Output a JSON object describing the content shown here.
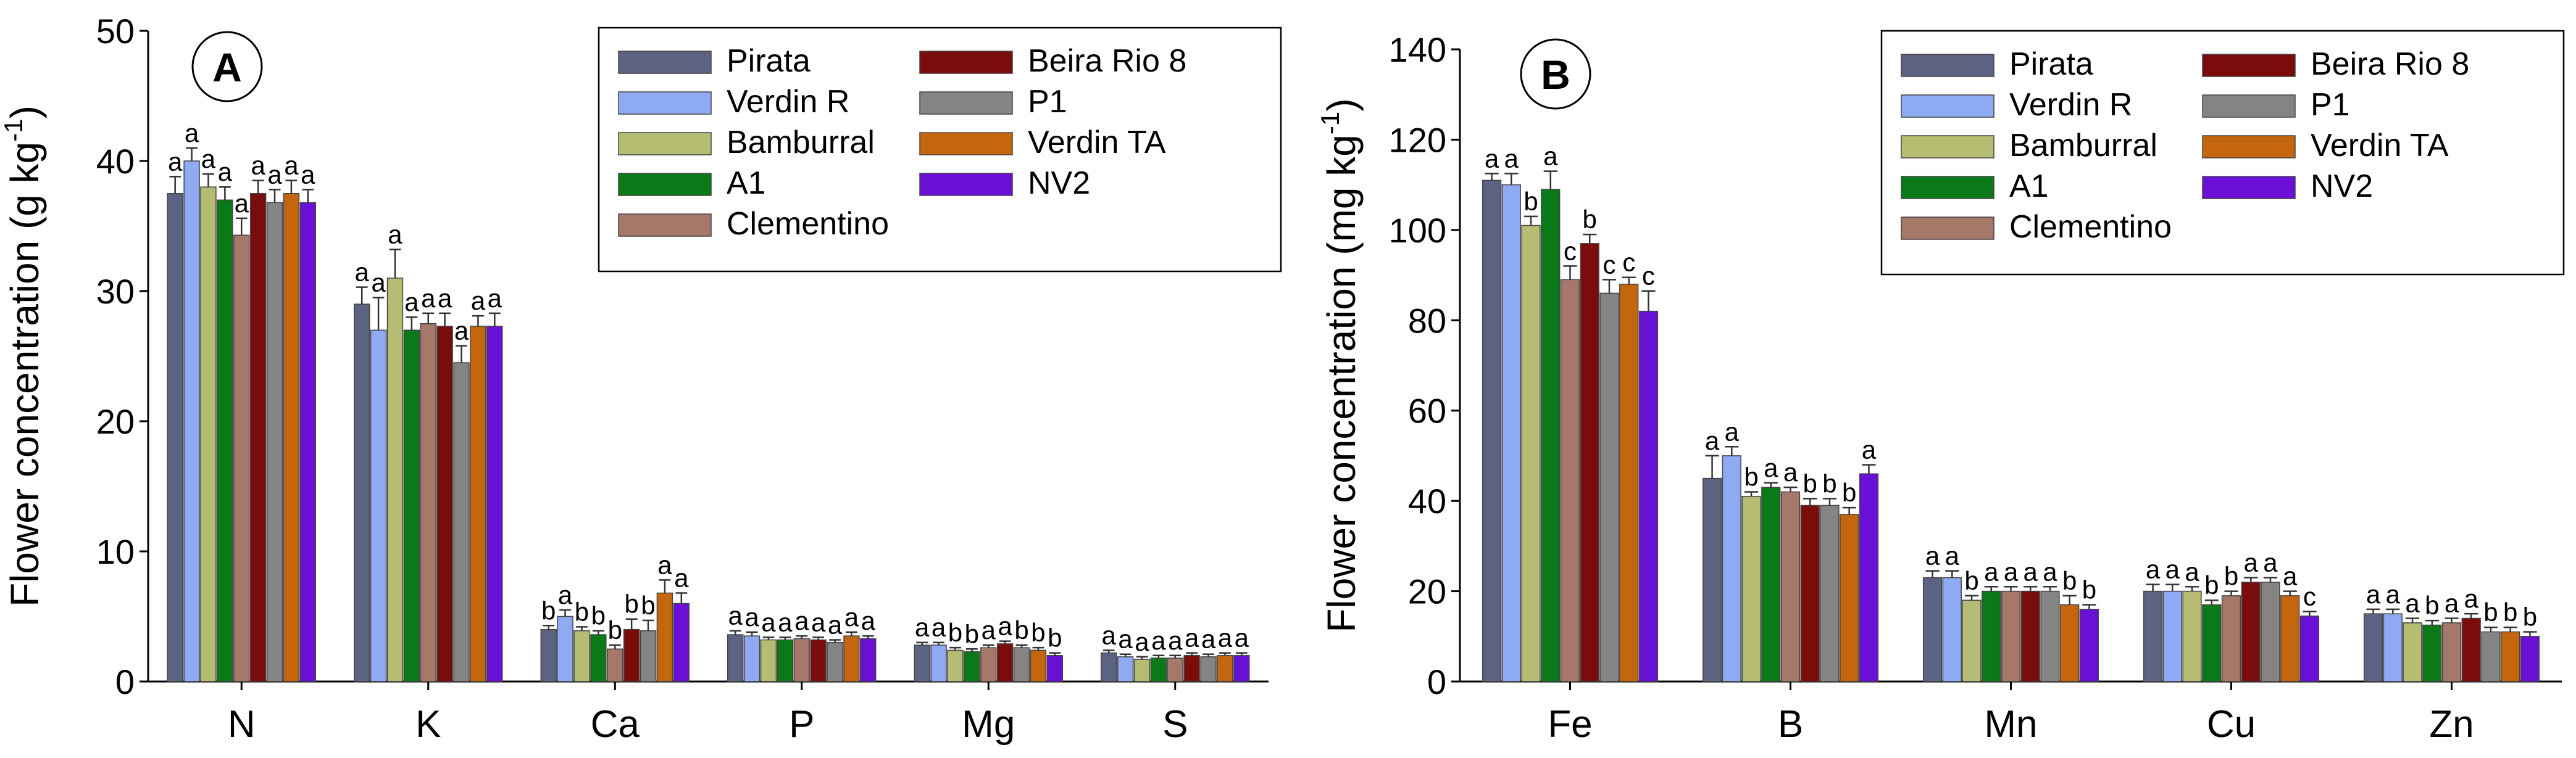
{
  "colors": {
    "Pirata": "#5b6282",
    "Verdin R": "#8eaaf3",
    "Bamburral": "#b6bc72",
    "A1": "#0a7a18",
    "Clementino": "#a5786a",
    "Beira Rio 8": "#7b0c0c",
    "P1": "#848484",
    "Verdin TA": "#c4660e",
    "NV2": "#6a0fd6"
  },
  "chart_data": [
    {
      "type": "bar",
      "panel": "A",
      "ylabel": "Flower concentration (g kg",
      "ylabel_sup": "-1",
      "ylabel_end": ")",
      "ylim": [
        0,
        50
      ],
      "yticks": [
        0,
        10,
        20,
        30,
        40,
        50
      ],
      "categories": [
        "N",
        "K",
        "Ca",
        "P",
        "Mg",
        "S"
      ],
      "legend_col1": [
        "Pirata",
        "Verdin R",
        "Bamburral",
        "A1",
        "Clementino"
      ],
      "legend_col2": [
        "Beira Rio 8",
        "P1",
        "Verdin TA",
        "NV2"
      ],
      "series": [
        {
          "name": "Pirata",
          "values": [
            37.5,
            29.0,
            4.0,
            3.6,
            2.8,
            2.2
          ],
          "errors": [
            1.3,
            1.3,
            0.3,
            0.3,
            0.2,
            0.2
          ],
          "sig": [
            "a",
            "a",
            "b",
            "a",
            "a",
            "a"
          ]
        },
        {
          "name": "Verdin R",
          "values": [
            40.0,
            27.0,
            5.0,
            3.5,
            2.8,
            1.9
          ],
          "errors": [
            1.0,
            2.5,
            0.5,
            0.3,
            0.2,
            0.2
          ],
          "sig": [
            "a",
            "a",
            "a",
            "a",
            "a",
            "a"
          ]
        },
        {
          "name": "Bamburral",
          "values": [
            38.0,
            31.0,
            3.9,
            3.2,
            2.4,
            1.7
          ],
          "errors": [
            1.0,
            2.2,
            0.3,
            0.2,
            0.2,
            0.2
          ],
          "sig": [
            "a",
            "a",
            "b",
            "a",
            "b",
            "a"
          ]
        },
        {
          "name": "A1",
          "values": [
            37.0,
            27.0,
            3.6,
            3.2,
            2.3,
            1.8
          ],
          "errors": [
            1.0,
            1.0,
            0.3,
            0.2,
            0.2,
            0.2
          ],
          "sig": [
            "a",
            "a",
            "b",
            "a",
            "b",
            "a"
          ]
        },
        {
          "name": "Clementino",
          "values": [
            34.3,
            27.5,
            2.5,
            3.3,
            2.6,
            1.8
          ],
          "errors": [
            1.3,
            0.8,
            0.3,
            0.2,
            0.2,
            0.2
          ],
          "sig": [
            "a",
            "a",
            "b",
            "a",
            "a",
            "a"
          ]
        },
        {
          "name": "Beira Rio 8",
          "values": [
            37.5,
            27.3,
            4.0,
            3.2,
            2.9,
            2.0
          ],
          "errors": [
            1.0,
            1.0,
            0.8,
            0.2,
            0.2,
            0.2
          ],
          "sig": [
            "a",
            "a",
            "b",
            "a",
            "a",
            "a"
          ]
        },
        {
          "name": "P1",
          "values": [
            36.8,
            24.5,
            3.9,
            3.0,
            2.6,
            1.9
          ],
          "errors": [
            1.0,
            1.3,
            0.8,
            0.2,
            0.2,
            0.2
          ],
          "sig": [
            "a",
            "a",
            "b",
            "a",
            "b",
            "a"
          ]
        },
        {
          "name": "Verdin TA",
          "values": [
            37.5,
            27.3,
            6.8,
            3.5,
            2.4,
            2.0
          ],
          "errors": [
            1.0,
            0.8,
            1.0,
            0.3,
            0.2,
            0.2
          ],
          "sig": [
            "a",
            "a",
            "a",
            "a",
            "b",
            "a"
          ]
        },
        {
          "name": "NV2",
          "values": [
            36.8,
            27.3,
            6.0,
            3.3,
            2.0,
            2.0
          ],
          "errors": [
            1.0,
            1.0,
            0.8,
            0.2,
            0.2,
            0.2
          ],
          "sig": [
            "a",
            "a",
            "a",
            "a",
            "b",
            "a"
          ]
        }
      ]
    },
    {
      "type": "bar",
      "panel": "B",
      "ylabel": "Flower concentration (mg kg",
      "ylabel_sup": "-1",
      "ylabel_end": ")",
      "ylim": [
        0,
        140
      ],
      "yticks": [
        0,
        20,
        40,
        60,
        80,
        100,
        120,
        140
      ],
      "categories": [
        "Fe",
        "B",
        "Mn",
        "Cu",
        "Zn"
      ],
      "legend_col1": [
        "Pirata",
        "Verdin R",
        "Bamburral",
        "A1",
        "Clementino"
      ],
      "legend_col2": [
        "Beira Rio 8",
        "P1",
        "Verdin TA",
        "NV2"
      ],
      "series": [
        {
          "name": "Pirata",
          "values": [
            111,
            45,
            23,
            20,
            15
          ],
          "errors": [
            1.5,
            5.0,
            1.5,
            1.5,
            1.0
          ],
          "sig": [
            "a",
            "a",
            "a",
            "a",
            "a"
          ]
        },
        {
          "name": "Verdin R",
          "values": [
            110,
            50,
            23,
            20,
            15
          ],
          "errors": [
            2.5,
            2.0,
            1.5,
            1.5,
            1.0
          ],
          "sig": [
            "a",
            "a",
            "a",
            "a",
            "a"
          ]
        },
        {
          "name": "Bamburral",
          "values": [
            101,
            41,
            18,
            20,
            13
          ],
          "errors": [
            2.0,
            1.0,
            1.0,
            1.0,
            1.0
          ],
          "sig": [
            "b",
            "b",
            "b",
            "a",
            "a"
          ]
        },
        {
          "name": "A1",
          "values": [
            109,
            43,
            20,
            17,
            12.5
          ],
          "errors": [
            4.0,
            1.0,
            1.0,
            1.0,
            1.0
          ],
          "sig": [
            "a",
            "a",
            "a",
            "b",
            "b"
          ]
        },
        {
          "name": "Clementino",
          "values": [
            89,
            42,
            20,
            19,
            13
          ],
          "errors": [
            3.0,
            1.0,
            1.0,
            1.0,
            1.0
          ],
          "sig": [
            "c",
            "a",
            "a",
            "b",
            "a"
          ]
        },
        {
          "name": "Beira Rio 8",
          "values": [
            97,
            39,
            20,
            22,
            14
          ],
          "errors": [
            2.0,
            1.5,
            1.0,
            1.0,
            1.0
          ],
          "sig": [
            "b",
            "b",
            "a",
            "a",
            "a"
          ]
        },
        {
          "name": "P1",
          "values": [
            86,
            39,
            20,
            22,
            11
          ],
          "errors": [
            3.0,
            1.5,
            1.0,
            1.0,
            1.0
          ],
          "sig": [
            "c",
            "b",
            "a",
            "a",
            "b"
          ]
        },
        {
          "name": "Verdin TA",
          "values": [
            88,
            37,
            17,
            19,
            11
          ],
          "errors": [
            1.5,
            1.5,
            2.0,
            1.0,
            1.0
          ],
          "sig": [
            "c",
            "b",
            "b",
            "a",
            "b"
          ]
        },
        {
          "name": "NV2",
          "values": [
            82,
            46,
            16,
            14.5,
            10
          ],
          "errors": [
            4.5,
            2.0,
            1.0,
            1.0,
            1.0
          ],
          "sig": [
            "c",
            "a",
            "b",
            "c",
            "b"
          ]
        }
      ]
    }
  ]
}
